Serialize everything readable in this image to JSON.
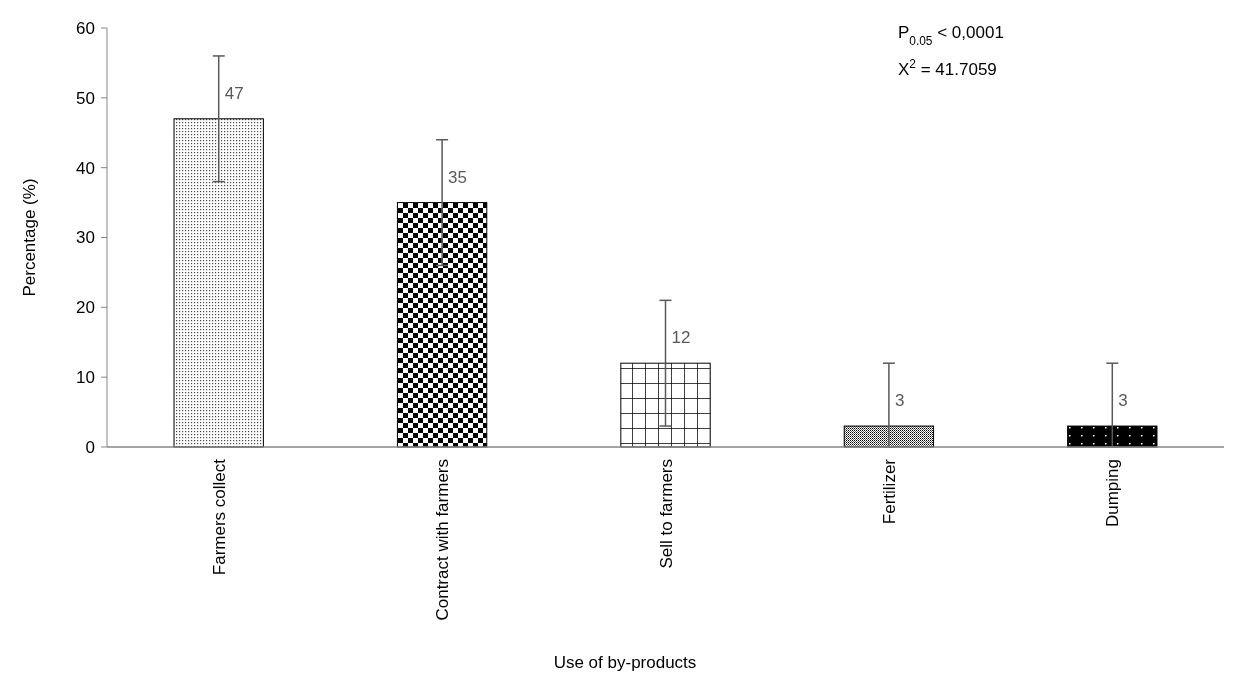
{
  "chart_data": {
    "type": "bar",
    "xlabel": "Use of by-products",
    "ylabel": "Percentage (%)",
    "categories": [
      "Farmers collect",
      "Contract with farmers",
      "Sell to farmers",
      "Fertilizer",
      "Dumping"
    ],
    "values": [
      47,
      35,
      12,
      3,
      3
    ],
    "errors": [
      9,
      9,
      9,
      [
        0,
        12
      ],
      [
        0,
        12
      ]
    ],
    "colors": [
      "#000000",
      "#000000",
      "#000000",
      "#000000",
      "#000000"
    ],
    "data_labels": true,
    "ylim": [
      0,
      60
    ],
    "yticks": [
      0,
      10,
      20,
      30,
      40,
      50,
      60
    ],
    "grid": false,
    "annotations": [
      "P$_{0.05}$ < 0,0001",
      "X$^{2}$ = 41.7059"
    ]
  }
}
